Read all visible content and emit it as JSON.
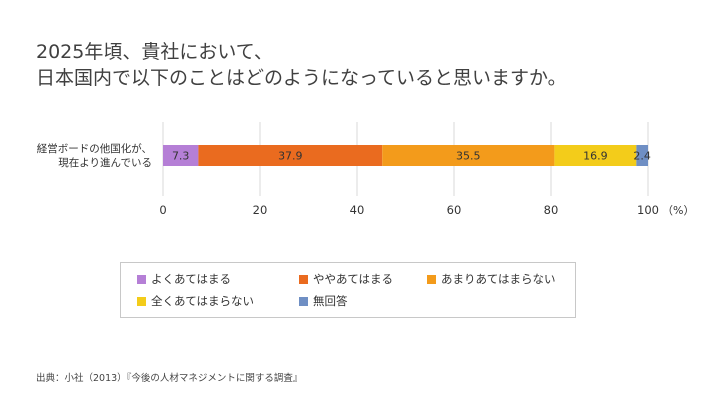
{
  "title": {
    "line1": "2025年頃、貴社において、",
    "line2": "日本国内で以下のことはどのようになっていると思いますか。"
  },
  "chart_data": {
    "type": "bar",
    "orientation": "horizontal-stacked-100",
    "categories": [
      "経営ボードの他国化が、現在より進んでいる"
    ],
    "category_label_lines": [
      "経営ボードの他国化が、",
      "現在より進んでいる"
    ],
    "series": [
      {
        "name": "よくあてはまる",
        "values": [
          7.3
        ],
        "color": "#b57fd6"
      },
      {
        "name": "ややあてはまる",
        "values": [
          37.9
        ],
        "color": "#ea6b1f"
      },
      {
        "name": "あまりあてはまらない",
        "values": [
          35.5
        ],
        "color": "#f39b1b"
      },
      {
        "name": "全くあてはまらない",
        "values": [
          16.9
        ],
        "color": "#f3cc1a"
      },
      {
        "name": "無回答",
        "values": [
          2.4
        ],
        "color": "#6f8fc4"
      }
    ],
    "xlim": [
      0,
      100
    ],
    "xticks": [
      0,
      20,
      40,
      60,
      80,
      100
    ],
    "xunit": "（%）",
    "grid": true,
    "legend_placement": "bottom"
  },
  "source": "出典：小社（2013）『今後の人材マネジメントに関する調査』"
}
